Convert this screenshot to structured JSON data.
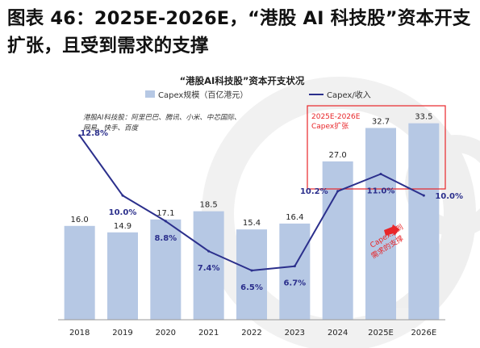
{
  "figure_title": "图表 46：2025E-2026E，“港股 AI 科技股”资本开支扩张，且受到需求的支撑",
  "chart_data": {
    "type": "bar",
    "title": "“港股AI科技股”资本开支状况",
    "categories": [
      "2018",
      "2019",
      "2020",
      "2021",
      "2022",
      "2023",
      "2024",
      "2025E",
      "2026E"
    ],
    "series": [
      {
        "name": "Capex规模（百亿港元）",
        "type": "bar",
        "color": "#b6c8e4",
        "values": [
          16.0,
          14.9,
          17.1,
          18.5,
          15.4,
          16.4,
          27.0,
          32.7,
          33.5
        ],
        "labels": [
          "16.0",
          "14.9",
          "17.1",
          "18.5",
          "15.4",
          "16.4",
          "27.0",
          "32.7",
          "33.5"
        ]
      },
      {
        "name": "Capex/收入",
        "type": "line",
        "color": "#2b2f8c",
        "values": [
          12.8,
          10.0,
          8.8,
          7.4,
          6.5,
          6.7,
          10.2,
          11.0,
          10.0
        ],
        "labels": [
          "12.8%",
          "10.0%",
          "8.8%",
          "7.4%",
          "6.5%",
          "6.7%",
          "10.2%",
          "11.0%",
          "10.0%"
        ]
      }
    ],
    "bar_ylim": [
      0,
      38
    ],
    "line_ylim": [
      4.2,
      14.6
    ],
    "legend_position": "top",
    "grid": false,
    "note": "港股AI科技股：阿里巴巴、腾讯、小米、中芯国际、网易、快手、百度",
    "highlight_box_label": [
      "2025E-2026E",
      "Capex扩张"
    ],
    "arrow_annotation": [
      "Capex受到",
      "需求的支撑"
    ],
    "colors": {
      "highlight": "#e8262a",
      "arrow": "#e8262a",
      "axis": "#888888"
    }
  }
}
